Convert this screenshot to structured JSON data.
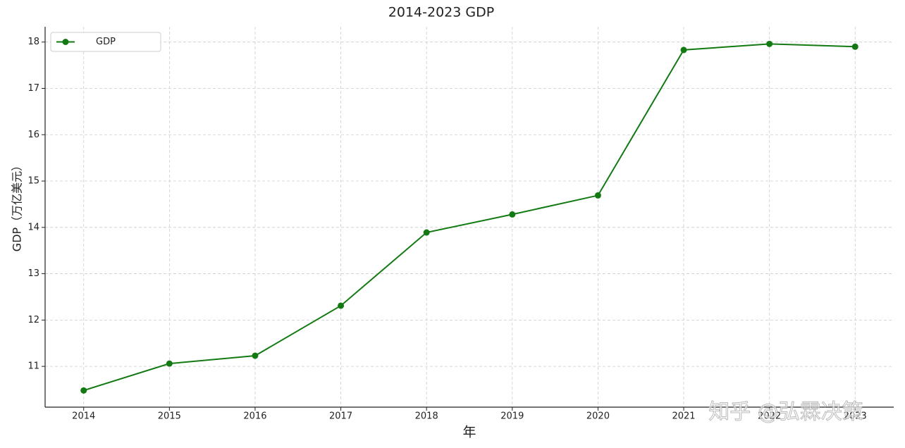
{
  "chart_data": {
    "type": "line",
    "title": "2014-2023 GDP",
    "x_label": "年",
    "y_label": "GDP（万亿美元）",
    "x": [
      2014,
      2015,
      2016,
      2017,
      2018,
      2019,
      2020,
      2021,
      2022,
      2023
    ],
    "series": [
      {
        "name": "GDP",
        "color": "#137a13",
        "values": [
          10.48,
          11.06,
          11.23,
          12.31,
          13.89,
          14.28,
          14.69,
          17.83,
          17.96,
          17.9
        ]
      }
    ],
    "xlim": [
      2013.55,
      2023.45
    ],
    "xticks": [
      2014,
      2015,
      2016,
      2017,
      2018,
      2019,
      2020,
      2021,
      2022,
      2023
    ],
    "ylim": [
      10.12,
      18.33
    ],
    "yticks": [
      11,
      12,
      13,
      14,
      15,
      16,
      17,
      18
    ],
    "grid": true,
    "legend": "upper left",
    "watermark": "知乎 @弘霖决策"
  }
}
